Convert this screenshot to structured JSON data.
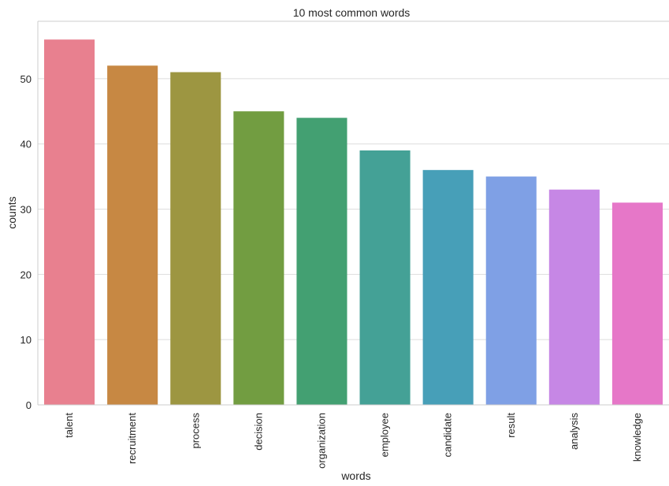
{
  "chart_data": {
    "type": "bar",
    "title": "10 most common words",
    "xlabel": "words",
    "ylabel": "counts",
    "categories": [
      "talent",
      "recruitment",
      "process",
      "decision",
      "organization",
      "employee",
      "candidate",
      "result",
      "analysis",
      "knowledge"
    ],
    "values": [
      56,
      52,
      51,
      45,
      44,
      39,
      36,
      35,
      33,
      31
    ],
    "ylim": [
      0,
      58.8
    ],
    "yticks": [
      0,
      10,
      20,
      30,
      40,
      50
    ],
    "grid": "horizontal",
    "colors": [
      "#e8808f",
      "#c78843",
      "#9d9641",
      "#729d41",
      "#43a072",
      "#44a196",
      "#479fb8",
      "#7fa0e5",
      "#c687e5",
      "#e677c8"
    ]
  }
}
